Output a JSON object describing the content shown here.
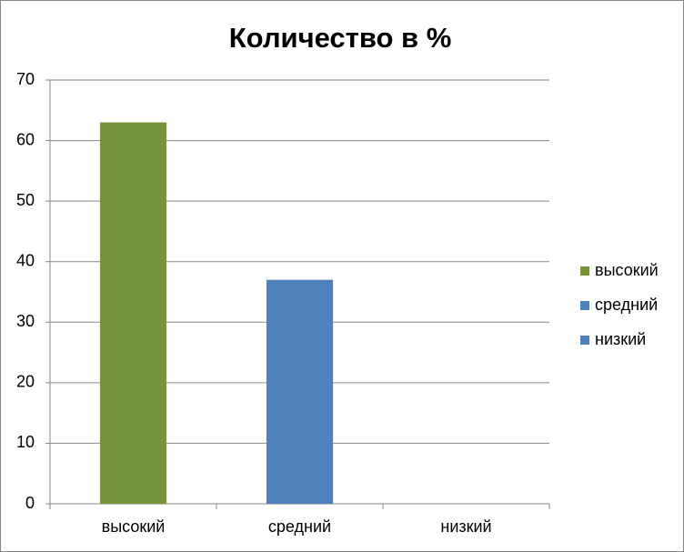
{
  "chart_data": {
    "type": "bar",
    "title": "Количество в %",
    "categories": [
      "высокий",
      "средний",
      "низкий"
    ],
    "values": [
      63,
      37,
      0
    ],
    "colors": [
      "#77933c",
      "#4f81bd",
      "#4f81bd"
    ],
    "ylim": [
      0,
      70
    ],
    "yticks": [
      0,
      10,
      20,
      30,
      40,
      50,
      60,
      70
    ],
    "grid": true,
    "legend": "right"
  }
}
